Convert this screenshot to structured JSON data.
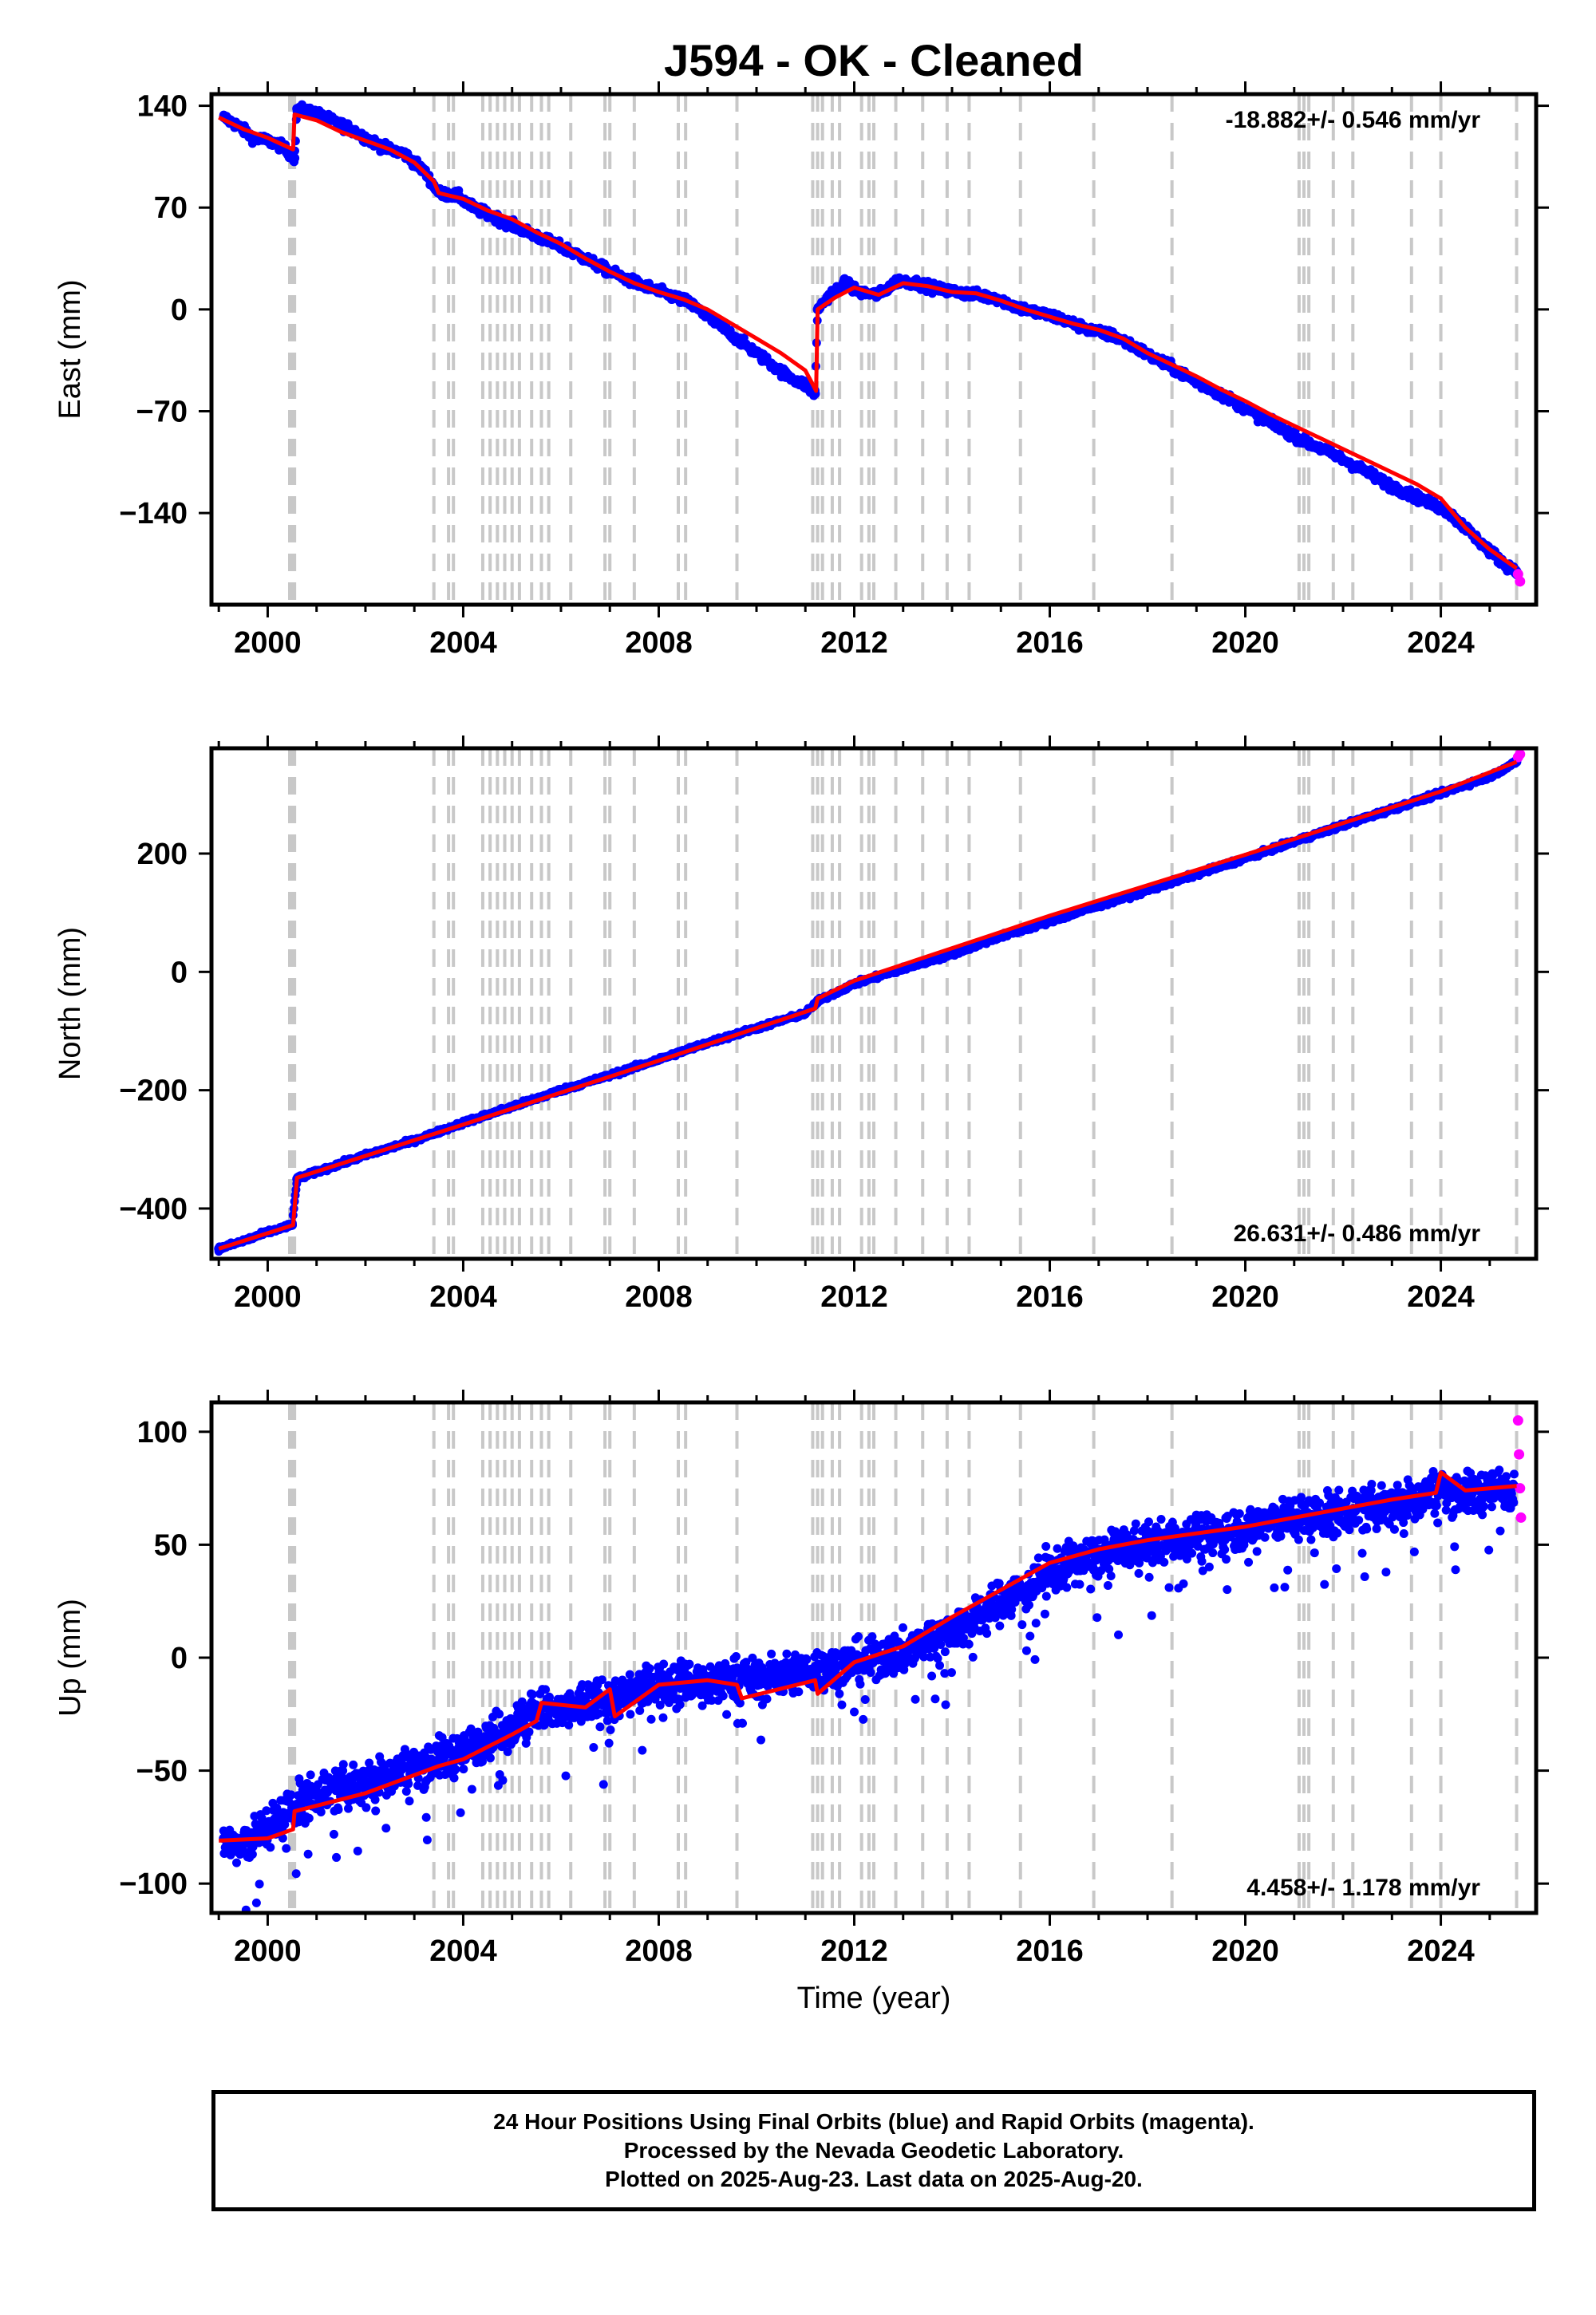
{
  "figure": {
    "title": "J594  - OK - Cleaned",
    "xlabel": "Time (year)",
    "footer": [
      "24 Hour Positions Using Final Orbits (blue) and Rapid Orbits (magenta).",
      "Processed by the Nevada Geodetic Laboratory.",
      "Plotted on 2025-Aug-23. Last data on 2025-Aug-20."
    ]
  },
  "colors": {
    "final_orbits": "#0000ff",
    "rapid_orbits": "#ff00ff",
    "model": "#ff0000",
    "event_lines": "#c8c8c8",
    "frame": "#000000"
  },
  "chart_data": [
    {
      "type": "scatter",
      "component": "east",
      "ylabel": "East (mm)",
      "rate_label": "-18.882+/- 0.546 mm/yr",
      "rate_position": "top-right",
      "xlim": [
        1998.85,
        2025.95
      ],
      "ylim": [
        -203,
        148
      ],
      "xticks": [
        2000,
        2004,
        2008,
        2012,
        2016,
        2020,
        2024
      ],
      "yticks": [
        140,
        70,
        0,
        -70,
        -140
      ],
      "grid": false,
      "series": [
        {
          "name": "Final Orbits",
          "color": "#0000ff",
          "x": [
            1999.1,
            1999.4,
            1999.7,
            2000.0,
            2000.3,
            2000.55,
            2000.6,
            2000.9,
            2001.3,
            2001.7,
            2002.0,
            2002.4,
            2002.8,
            2003.2,
            2003.5,
            2003.9,
            2004.2,
            2004.6,
            2005.0,
            2005.4,
            2005.8,
            2006.2,
            2006.6,
            2007.0,
            2007.4,
            2007.8,
            2008.2,
            2008.6,
            2009.0,
            2009.4,
            2009.8,
            2010.2,
            2010.6,
            2011.0,
            2011.2,
            2011.25,
            2011.5,
            2011.8,
            2012.1,
            2012.5,
            2012.9,
            2013.3,
            2013.7,
            2014.1,
            2014.5,
            2014.9,
            2015.3,
            2015.7,
            2016.1,
            2016.5,
            2016.9,
            2017.3,
            2017.7,
            2018.1,
            2018.5,
            2018.9,
            2019.3,
            2019.7,
            2020.1,
            2020.5,
            2020.9,
            2021.3,
            2021.7,
            2022.1,
            2022.5,
            2022.9,
            2023.3,
            2023.7,
            2024.1,
            2024.5,
            2024.9,
            2025.3,
            2025.55
          ],
          "y": [
            132,
            126,
            118,
            116,
            112,
            104,
            138,
            136,
            130,
            124,
            118,
            111,
            107,
            95,
            80,
            78,
            70,
            64,
            58,
            52,
            46,
            40,
            33,
            26,
            20,
            15,
            10,
            5,
            -5,
            -15,
            -25,
            -35,
            -45,
            -52,
            -58,
            0,
            10,
            18,
            12,
            10,
            20,
            18,
            14,
            12,
            10,
            8,
            2,
            -2,
            -5,
            -10,
            -15,
            -18,
            -25,
            -33,
            -40,
            -48,
            -55,
            -62,
            -70,
            -78,
            -85,
            -92,
            -98,
            -105,
            -112,
            -120,
            -126,
            -132,
            -138,
            -150,
            -163,
            -175,
            -180
          ]
        },
        {
          "name": "Rapid Orbits",
          "color": "#ff00ff",
          "x": [
            2025.58,
            2025.62
          ],
          "y": [
            -182,
            -187
          ]
        }
      ],
      "model": {
        "color": "#ff0000",
        "x": [
          1999.0,
          1999.5,
          2000.0,
          2000.52,
          2000.55,
          2001.0,
          2001.5,
          2002.0,
          2002.5,
          2003.0,
          2003.4,
          2003.5,
          2004.0,
          2004.5,
          2005.0,
          2005.5,
          2006.0,
          2006.5,
          2007.0,
          2007.5,
          2008.0,
          2008.5,
          2009.0,
          2009.5,
          2010.0,
          2010.5,
          2011.0,
          2011.22,
          2011.25,
          2011.6,
          2012.0,
          2012.5,
          2013.0,
          2013.5,
          2014.0,
          2014.5,
          2015.0,
          2015.5,
          2016.0,
          2016.5,
          2017.0,
          2017.5,
          2018.0,
          2018.5,
          2019.0,
          2019.5,
          2020.0,
          2020.5,
          2021.0,
          2021.5,
          2022.0,
          2022.5,
          2023.0,
          2023.5,
          2024.0,
          2024.5,
          2025.0,
          2025.55
        ],
        "y": [
          132,
          124,
          118,
          110,
          134,
          130,
          122,
          116,
          110,
          101,
          88,
          80,
          76,
          68,
          62,
          53,
          45,
          35,
          26,
          18,
          12,
          7,
          0,
          -10,
          -20,
          -30,
          -42,
          -56,
          0,
          8,
          15,
          10,
          18,
          16,
          12,
          11,
          6,
          0,
          -5,
          -10,
          -14,
          -20,
          -30,
          -38,
          -46,
          -55,
          -63,
          -72,
          -80,
          -88,
          -96,
          -104,
          -112,
          -120,
          -130,
          -150,
          -165,
          -178
        ]
      }
    },
    {
      "type": "scatter",
      "component": "north",
      "ylabel": "North (mm)",
      "rate_label": "26.631+/- 0.486 mm/yr",
      "rate_position": "bottom-right",
      "xlim": [
        1998.85,
        2025.95
      ],
      "ylim": [
        -485,
        378
      ],
      "xticks": [
        2000,
        2004,
        2008,
        2012,
        2016,
        2020,
        2024
      ],
      "yticks": [
        200,
        0,
        -200,
        -400
      ],
      "grid": false,
      "series": [
        {
          "name": "Final Orbits",
          "color": "#0000ff",
          "x": [
            1999.0,
            1999.5,
            2000.0,
            2000.5,
            2000.6,
            2001.0,
            2002.0,
            2003.0,
            2004.0,
            2005.0,
            2006.0,
            2007.0,
            2008.0,
            2009.0,
            2010.0,
            2011.0,
            2011.25,
            2012.0,
            2013.0,
            2014.0,
            2015.0,
            2016.0,
            2017.0,
            2018.0,
            2019.0,
            2020.0,
            2021.0,
            2022.0,
            2023.0,
            2024.0,
            2025.0,
            2025.55
          ],
          "y": [
            -468,
            -455,
            -440,
            -428,
            -350,
            -338,
            -310,
            -285,
            -255,
            -228,
            -200,
            -175,
            -148,
            -120,
            -95,
            -70,
            -50,
            -20,
            5,
            30,
            60,
            85,
            112,
            138,
            165,
            192,
            220,
            248,
            275,
            302,
            330,
            355
          ]
        },
        {
          "name": "Rapid Orbits",
          "color": "#ff00ff",
          "x": [
            2025.58,
            2025.62
          ],
          "y": [
            363,
            368
          ]
        }
      ],
      "model": {
        "color": "#ff0000",
        "x": [
          1999.0,
          2000.52,
          2000.6,
          2004.0,
          2008.0,
          2011.2,
          2011.25,
          2012.0,
          2016.0,
          2020.0,
          2024.0,
          2025.55
        ],
        "y": [
          -468,
          -428,
          -348,
          -258,
          -150,
          -62,
          -45,
          -15,
          95,
          198,
          305,
          355
        ]
      }
    },
    {
      "type": "scatter",
      "component": "up",
      "ylabel": "Up (mm)",
      "rate_label": "4.458+/- 1.178 mm/yr",
      "rate_position": "bottom-right",
      "xlim": [
        1998.85,
        2025.95
      ],
      "ylim": [
        -113,
        113
      ],
      "xticks": [
        2000,
        2004,
        2008,
        2012,
        2016,
        2020,
        2024
      ],
      "yticks": [
        100,
        50,
        0,
        -50,
        -100
      ],
      "grid": false,
      "series": [
        {
          "name": "Final Orbits",
          "color": "#0000ff",
          "x": [
            1999.1,
            1999.4,
            1999.8,
            2000.2,
            2000.6,
            2001.0,
            2001.5,
            2002.0,
            2002.5,
            2003.0,
            2003.5,
            2004.0,
            2004.5,
            2005.0,
            2005.5,
            2006.0,
            2006.5,
            2007.0,
            2007.5,
            2008.0,
            2008.5,
            2009.0,
            2009.5,
            2010.0,
            2010.5,
            2011.0,
            2011.5,
            2012.0,
            2012.5,
            2013.0,
            2013.5,
            2014.0,
            2014.5,
            2015.0,
            2015.5,
            2016.0,
            2016.5,
            2017.0,
            2017.5,
            2018.0,
            2018.5,
            2019.0,
            2019.5,
            2020.0,
            2020.5,
            2021.0,
            2021.5,
            2022.0,
            2022.5,
            2023.0,
            2023.5,
            2024.0,
            2024.5,
            2025.0,
            2025.5
          ],
          "y": [
            -80,
            -85,
            -78,
            -72,
            -65,
            -60,
            -58,
            -55,
            -52,
            -48,
            -45,
            -42,
            -35,
            -30,
            -22,
            -25,
            -20,
            -18,
            -15,
            -12,
            -10,
            -12,
            -8,
            -10,
            -8,
            -6,
            -5,
            -2,
            0,
            2,
            8,
            12,
            18,
            25,
            30,
            38,
            42,
            45,
            48,
            50,
            52,
            55,
            55,
            58,
            60,
            62,
            62,
            65,
            66,
            68,
            70,
            75,
            72,
            74,
            76
          ]
        },
        {
          "name": "Rapid Orbits",
          "color": "#ff00ff",
          "x": [
            2025.58,
            2025.6,
            2025.62,
            2025.64
          ],
          "y": [
            105,
            90,
            75,
            62
          ]
        }
      ],
      "model": {
        "color": "#ff0000",
        "x": [
          1999.0,
          2000.0,
          2000.52,
          2000.55,
          2002.0,
          2003.5,
          2004.0,
          2005.0,
          2005.5,
          2005.6,
          2006.5,
          2007.0,
          2007.1,
          2008.0,
          2009.0,
          2009.6,
          2009.7,
          2011.2,
          2011.25,
          2012.0,
          2013.0,
          2014.0,
          2015.0,
          2016.0,
          2017.0,
          2018.0,
          2019.0,
          2020.0,
          2021.0,
          2022.0,
          2023.0,
          2023.9,
          2024.0,
          2024.5,
          2025.55
        ],
        "y": [
          -81,
          -80,
          -76,
          -68,
          -60,
          -48,
          -45,
          -34,
          -28,
          -20,
          -22,
          -14,
          -26,
          -12,
          -10,
          -12,
          -18,
          -10,
          -16,
          -2,
          5,
          18,
          30,
          42,
          48,
          52,
          55,
          58,
          62,
          66,
          70,
          73,
          82,
          74,
          76
        ]
      }
    }
  ],
  "event_lines": [
    2000.45,
    2000.5,
    2000.55,
    2003.4,
    2003.7,
    2003.8,
    2004.4,
    2004.55,
    2004.7,
    2004.85,
    2005.0,
    2005.15,
    2005.4,
    2005.6,
    2005.75,
    2006.2,
    2006.9,
    2007.0,
    2007.5,
    2008.4,
    2008.55,
    2009.6,
    2011.15,
    2011.25,
    2011.35,
    2011.55,
    2011.7,
    2012.15,
    2012.3,
    2012.4,
    2012.85,
    2013.4,
    2013.9,
    2014.35,
    2015.4,
    2016.9,
    2018.5,
    2021.1,
    2021.2,
    2021.3,
    2021.8,
    2022.2,
    2023.4,
    2024.0,
    2025.55
  ]
}
